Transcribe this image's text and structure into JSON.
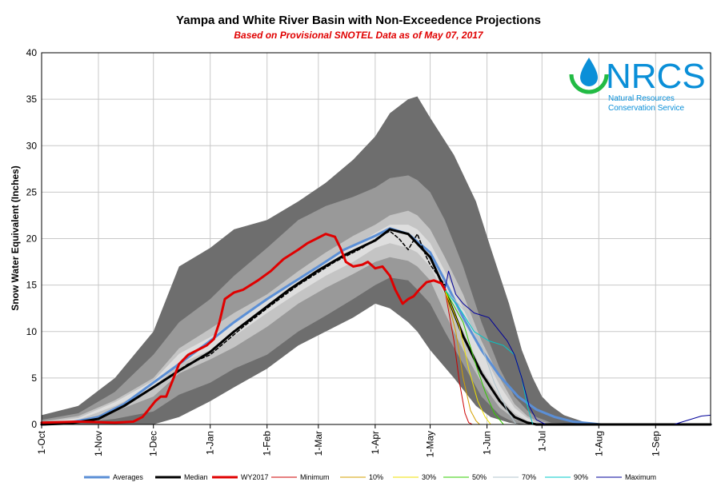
{
  "chart_data": {
    "type": "area",
    "title": "Yampa and White River Basin with Non-Exceedence Projections",
    "subtitle": "Based on Provisional SNOTEL Data as of May 07, 2017",
    "ylabel": "Snow Water Equivalent (Inches)",
    "xlabel": "",
    "ylim": [
      0,
      40
    ],
    "yticks": [
      0,
      5,
      10,
      15,
      20,
      25,
      30,
      35,
      40
    ],
    "x_tick_labels": [
      "1-Oct",
      "1-Nov",
      "1-Dec",
      "1-Jan",
      "1-Feb",
      "1-Mar",
      "1-Apr",
      "1-May",
      "1-Jun",
      "1-Jul",
      "1-Aug",
      "1-Sep"
    ],
    "x_tick_day": [
      0,
      31,
      61,
      92,
      123,
      151,
      182,
      212,
      243,
      273,
      304,
      335
    ],
    "x_range": [
      0,
      365
    ],
    "grid": true,
    "bands": [
      {
        "name": "min-max",
        "color": "#6e6e6e",
        "x": [
          0,
          20,
          40,
          61,
          75,
          92,
          105,
          123,
          140,
          155,
          170,
          182,
          190,
          200,
          205,
          212,
          225,
          237,
          245,
          255,
          262,
          268,
          273,
          278,
          285,
          300,
          365
        ],
        "lower": [
          0,
          0,
          0,
          0,
          0.8,
          2.5,
          4,
          6,
          8.5,
          10,
          11.5,
          13,
          12.5,
          11,
          10,
          8,
          5,
          2,
          0.8,
          0.2,
          0,
          0,
          0,
          0,
          0,
          0,
          0
        ],
        "upper": [
          1,
          2,
          5,
          10,
          17,
          19,
          21,
          22,
          24,
          26,
          28.5,
          31,
          33.5,
          35,
          35.3,
          33,
          29,
          24,
          19,
          13,
          8,
          5,
          3,
          2,
          1,
          0,
          0
        ]
      },
      {
        "name": "10-90",
        "color": "#999999",
        "x": [
          0,
          20,
          40,
          61,
          75,
          92,
          105,
          123,
          140,
          155,
          170,
          182,
          190,
          200,
          205,
          212,
          220,
          230,
          240,
          250,
          258,
          265,
          270,
          278,
          300,
          365
        ],
        "lower": [
          0,
          0.2,
          0.6,
          1.4,
          3.2,
          4.5,
          6,
          7.5,
          10,
          11.7,
          13.5,
          15,
          15.8,
          15.5,
          14.5,
          13,
          10,
          6.5,
          3,
          1,
          0.2,
          0,
          0,
          0,
          0,
          0
        ],
        "upper": [
          0.5,
          1.2,
          3.5,
          7.5,
          11,
          13.5,
          16,
          19,
          22,
          23.5,
          24.5,
          25.5,
          26.5,
          26.8,
          26.3,
          25,
          22,
          17,
          11,
          6,
          3,
          1.5,
          0.8,
          0.2,
          0,
          0
        ]
      },
      {
        "name": "30-70",
        "color": "#c4c4c4",
        "x": [
          0,
          20,
          40,
          61,
          75,
          92,
          105,
          123,
          140,
          155,
          170,
          182,
          190,
          200,
          205,
          212,
          220,
          230,
          240,
          250,
          258,
          265,
          270,
          278,
          300,
          365
        ],
        "lower": [
          0,
          0.4,
          1.4,
          3,
          5.5,
          7,
          8.3,
          10.5,
          13,
          14.7,
          16.2,
          17.5,
          18,
          17.6,
          17,
          15.5,
          12,
          8,
          4.5,
          1.8,
          0.6,
          0.1,
          0,
          0,
          0,
          0
        ],
        "upper": [
          0.3,
          0.9,
          2.6,
          5,
          8.2,
          10.3,
          12,
          14,
          16.5,
          18.5,
          20.3,
          21.5,
          22.5,
          23,
          22.5,
          21,
          18,
          14,
          9,
          5,
          2.2,
          0.9,
          0.4,
          0.1,
          0,
          0
        ]
      },
      {
        "name": "45-55",
        "color": "#dedede",
        "x": [
          0,
          20,
          40,
          61,
          75,
          92,
          105,
          123,
          140,
          155,
          170,
          182,
          190,
          200,
          205,
          212,
          220,
          230,
          240,
          250,
          258,
          265,
          270,
          278,
          300,
          365
        ],
        "lower": [
          0,
          0.5,
          2,
          4,
          6.5,
          8,
          9.5,
          12,
          14.2,
          16,
          17.5,
          19,
          19.5,
          19,
          18.5,
          17,
          14,
          10,
          6,
          3,
          1.2,
          0.4,
          0.1,
          0,
          0,
          0
        ],
        "upper": [
          0.2,
          0.7,
          2.4,
          4.7,
          7.6,
          9.4,
          11,
          13.3,
          15.8,
          17.6,
          19.2,
          20.6,
          21.5,
          21.5,
          21,
          19.5,
          16.5,
          12.5,
          8,
          4.2,
          1.8,
          0.7,
          0.2,
          0,
          0,
          0
        ]
      }
    ],
    "series": [
      {
        "name": "Averages",
        "color": "#5b8fd6",
        "width": 3,
        "x": [
          0,
          15,
          31,
          45,
          61,
          75,
          92,
          105,
          123,
          135,
          151,
          165,
          182,
          190,
          200,
          212,
          220,
          230,
          240,
          250,
          260,
          270,
          280,
          290,
          300,
          305,
          365
        ],
        "y": [
          0,
          0.2,
          0.8,
          2.2,
          4.5,
          6.5,
          9,
          11,
          13.5,
          15,
          17,
          18.8,
          20.3,
          21.1,
          20.5,
          18.5,
          15.5,
          11.5,
          8,
          5.2,
          3,
          1.6,
          0.8,
          0.3,
          0.1,
          0,
          0
        ]
      },
      {
        "name": "Median",
        "color": "#000000",
        "width": 3,
        "x": [
          0,
          15,
          31,
          45,
          61,
          75,
          92,
          105,
          123,
          135,
          151,
          165,
          182,
          190,
          200,
          212,
          220,
          230,
          240,
          250,
          258,
          265,
          270,
          275,
          365
        ],
        "y": [
          0,
          0.1,
          0.6,
          2,
          4,
          5.8,
          7.8,
          10,
          12.7,
          14.5,
          16.6,
          18.2,
          19.8,
          21,
          20.5,
          18,
          14.5,
          9.5,
          5.5,
          2.5,
          0.8,
          0.2,
          0,
          0,
          0
        ]
      },
      {
        "name": "Median-dashed",
        "color": "#000000",
        "width": 1.5,
        "dash": "4,3",
        "x": [
          61,
          80,
          92,
          110,
          123,
          140,
          160,
          175,
          185,
          190,
          195,
          200,
          205,
          210,
          212,
          220
        ],
        "y": [
          4,
          6.5,
          7.5,
          10.5,
          12.5,
          15,
          17.5,
          19,
          20.3,
          20.8,
          20,
          18.8,
          20.5,
          18,
          17.2,
          15
        ]
      },
      {
        "name": "WY2017",
        "color": "#e00000",
        "width": 3,
        "x": [
          0,
          20,
          40,
          50,
          55,
          58,
          62,
          65,
          68,
          72,
          75,
          80,
          85,
          90,
          94,
          97,
          100,
          105,
          110,
          118,
          125,
          132,
          140,
          145,
          150,
          155,
          160,
          163,
          166,
          170,
          175,
          178,
          182,
          186,
          190,
          193,
          197,
          200,
          203,
          206,
          210,
          214,
          218,
          220
        ],
        "y": [
          0.2,
          0.3,
          0.2,
          0.3,
          0.8,
          1.5,
          2.5,
          3,
          3,
          5,
          6.5,
          7.5,
          8,
          8.5,
          9.2,
          11,
          13.5,
          14.2,
          14.5,
          15.5,
          16.5,
          17.8,
          18.8,
          19.5,
          20,
          20.5,
          20.2,
          19,
          17.5,
          17,
          17.2,
          17.5,
          16.8,
          17,
          16,
          14.5,
          13,
          13.5,
          13.8,
          14.5,
          15.3,
          15.5,
          15.2,
          14.5
        ]
      },
      {
        "name": "Minimum",
        "color": "#cc0000",
        "width": 1,
        "x": [
          220,
          225,
          228,
          231,
          233,
          235
        ],
        "y": [
          14.5,
          9,
          4.5,
          1.2,
          0.2,
          0
        ]
      },
      {
        "name": "10%",
        "color": "#d4a000",
        "width": 1,
        "x": [
          220,
          226,
          230,
          234,
          237,
          239
        ],
        "y": [
          14.5,
          10,
          5,
          1.5,
          0.4,
          0
        ]
      },
      {
        "name": "30%",
        "color": "#f0e000",
        "width": 1,
        "x": [
          220,
          228,
          233,
          238,
          242,
          245
        ],
        "y": [
          14.5,
          10.5,
          6,
          2.5,
          0.8,
          0
        ]
      },
      {
        "name": "50%",
        "color": "#33cc00",
        "width": 1,
        "x": [
          220,
          230,
          236,
          242,
          247,
          252
        ],
        "y": [
          14.5,
          11,
          7,
          3.5,
          1.2,
          0
        ]
      },
      {
        "name": "70%",
        "color": "#b0c4cc",
        "width": 1,
        "x": [
          220,
          232,
          240,
          247,
          254,
          259
        ],
        "y": [
          14.5,
          12,
          8.5,
          4.5,
          1.5,
          0
        ]
      },
      {
        "name": "90%",
        "color": "#00c8c8",
        "width": 1,
        "x": [
          220,
          228,
          236,
          244,
          252,
          258,
          262,
          265,
          268
        ],
        "y": [
          14.5,
          12.5,
          10,
          9,
          8.5,
          7.5,
          5,
          2,
          0
        ]
      },
      {
        "name": "Maximum",
        "color": "#000099",
        "width": 1,
        "x": [
          220,
          222,
          226,
          230,
          236,
          244,
          250,
          254,
          258,
          262,
          266,
          270,
          275,
          300,
          345,
          350,
          355,
          360,
          365
        ],
        "y": [
          14.5,
          16.5,
          14,
          13,
          12,
          11.5,
          10,
          9,
          7.5,
          5,
          2,
          0.5,
          0,
          0,
          0,
          0.3,
          0.6,
          0.9,
          1
        ]
      }
    ],
    "legend": {
      "placement": "bottom",
      "entries": [
        {
          "name": "Averages",
          "color": "#5b8fd6",
          "width": 3
        },
        {
          "name": "Median",
          "color": "#000000",
          "width": 3
        },
        {
          "name": "WY2017",
          "color": "#e00000",
          "width": 3
        },
        {
          "name": "Minimum",
          "color": "#cc0000",
          "width": 1
        },
        {
          "name": "10%",
          "color": "#d4a000",
          "width": 1
        },
        {
          "name": "30%",
          "color": "#f0e000",
          "width": 1
        },
        {
          "name": "50%",
          "color": "#33cc00",
          "width": 1
        },
        {
          "name": "70%",
          "color": "#b0c4cc",
          "width": 1
        },
        {
          "name": "90%",
          "color": "#00c8c8",
          "width": 1
        },
        {
          "name": "Maximum",
          "color": "#000099",
          "width": 1
        }
      ]
    }
  },
  "logo": {
    "text": "NRCS",
    "line1": "Natural Resources",
    "line2": "Conservation Service",
    "color": "#0a8fd8",
    "accent": "#22bb44"
  }
}
